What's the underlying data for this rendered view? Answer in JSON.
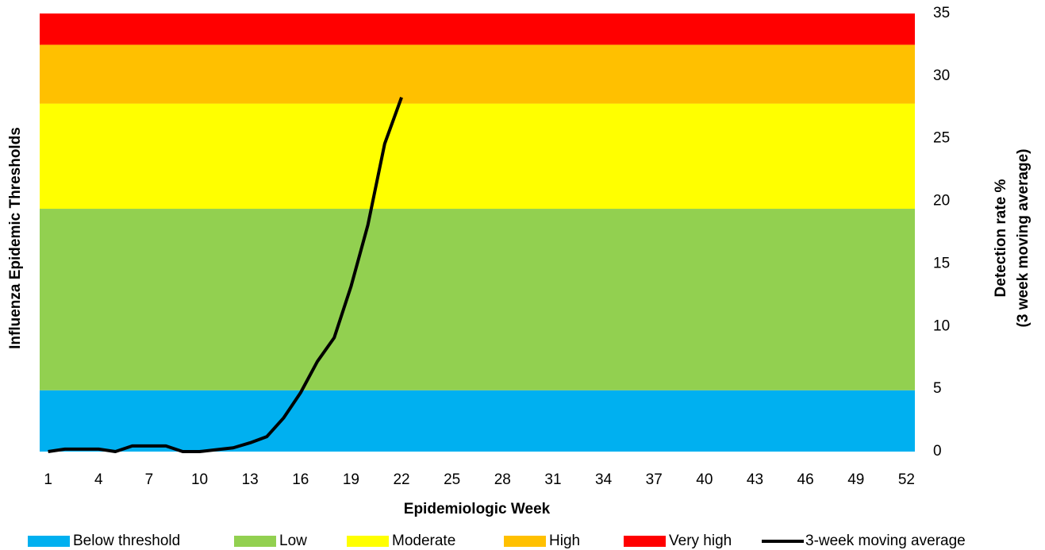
{
  "chart_data": {
    "type": "line",
    "x_label": "Epidemiologic Week",
    "y_label": "Influenza Epidemic Thresholds",
    "y2_label": [
      "Detection rate %",
      "(3 week moving average)"
    ],
    "xlim": [
      0.5,
      52.5
    ],
    "xticks": [
      1,
      4,
      7,
      10,
      13,
      16,
      19,
      22,
      25,
      28,
      31,
      34,
      37,
      40,
      43,
      46,
      49,
      52
    ],
    "y2lim": [
      0,
      35
    ],
    "y2ticks": [
      0,
      5,
      10,
      15,
      20,
      25,
      30,
      35
    ],
    "bands": [
      {
        "name": "Below threshold",
        "color": "#00b0f0",
        "value": 4.9
      },
      {
        "name": "Low",
        "color": "#92d050",
        "value": 14.5
      },
      {
        "name": "Moderate",
        "color": "#ffff00",
        "value": 8.4
      },
      {
        "name": "High",
        "color": "#ffc000",
        "value": 4.7
      },
      {
        "name": "Very high",
        "color": "#ff0000",
        "value": 2.5
      }
    ],
    "x": [
      1,
      2,
      3,
      4,
      5,
      6,
      7,
      8,
      9,
      10,
      11,
      12,
      13,
      14,
      15,
      16,
      17,
      18,
      19,
      20,
      21,
      22
    ],
    "series": [
      {
        "name": "3-week moving average",
        "color": "#000000",
        "axis": "y2",
        "values": [
          0,
          0.2,
          0.2,
          0.2,
          0,
          0.45,
          0.45,
          0.45,
          0,
          0,
          0.15,
          0.3,
          0.7,
          1.2,
          2.7,
          4.7,
          7.2,
          9.1,
          13.2,
          18.1,
          24.6,
          28.3
        ]
      }
    ]
  }
}
